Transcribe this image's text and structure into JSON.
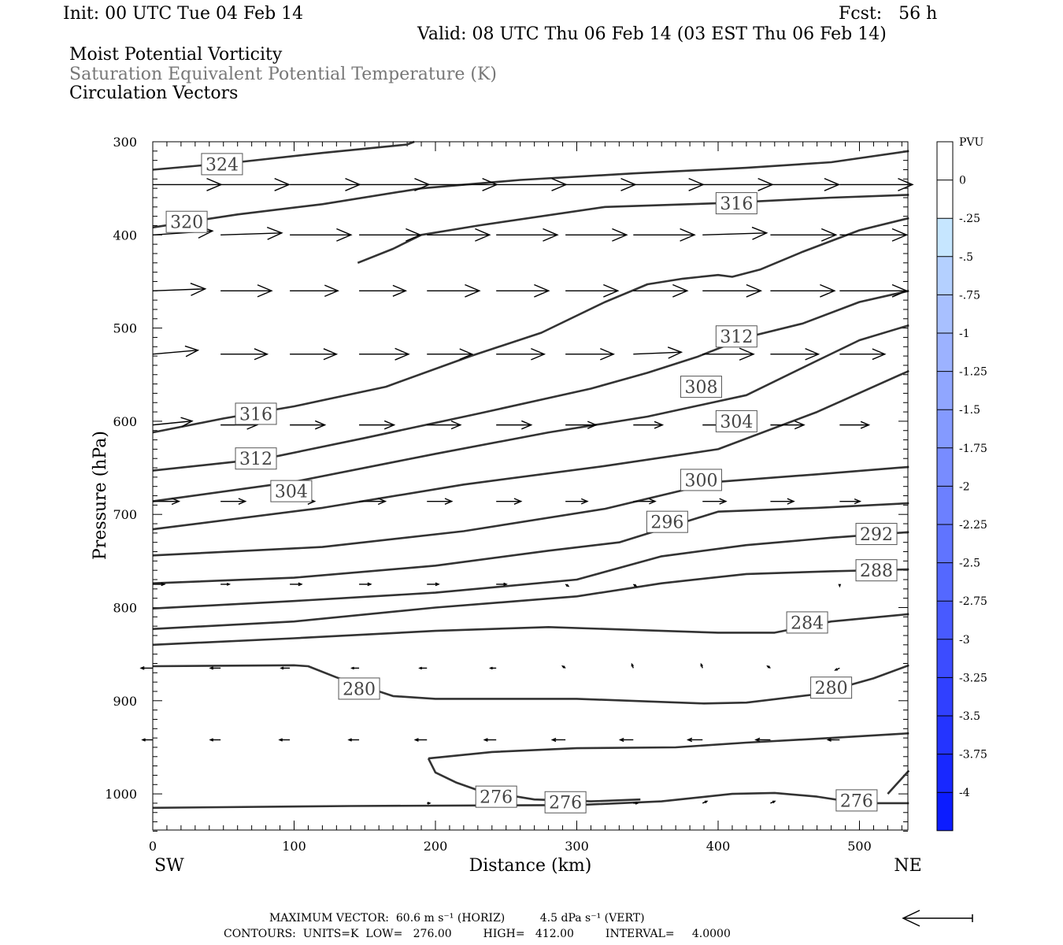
{
  "header": {
    "init": "Init: 00 UTC Tue 04 Feb 14",
    "fcst": "Fcst:   56 h",
    "valid": "Valid: 08 UTC Thu 06 Feb 14 (03 EST Thu 06 Feb 14)",
    "line1": "Moist Potential Vorticity",
    "line2": "Saturation Equivalent Potential Temperature (K)",
    "line3": "Circulation Vectors"
  },
  "footer": {
    "max_vector": "MAXIMUM VECTOR:  60.6 m s⁻¹ (HORIZ)          4.5 dPa s⁻¹ (VERT)",
    "contours": "CONTOURS:  UNITS=K  LOW=   276.00         HIGH=   412.00         INTERVAL=     4.0000"
  },
  "chart_data": {
    "type": "line",
    "xlabel": "Distance (km)",
    "ylabel": "Pressure (hPa)",
    "xlim": [
      0,
      535
    ],
    "ylim": [
      1040,
      300
    ],
    "x_ticks": [
      0,
      100,
      200,
      300,
      400,
      500
    ],
    "y_ticks": [
      300,
      400,
      500,
      600,
      700,
      800,
      900,
      1000
    ],
    "x_end_labels": {
      "left": "SW",
      "right": "NE"
    },
    "colorbar": {
      "title": "PVU",
      "levels": [
        "0",
        "-.25",
        "-.5",
        "-.75",
        "-1",
        "-1.25",
        "-1.5",
        "-1.75",
        "-2",
        "-2.25",
        "-2.5",
        "-2.75",
        "-3",
        "-3.25",
        "-3.5",
        "-3.75",
        "-4"
      ],
      "colors": [
        "#ffffff",
        "#ffffff",
        "#c6e6ff",
        "#b4d0ff",
        "#a8c0ff",
        "#9cb2ff",
        "#90a6ff",
        "#849aff",
        "#788cff",
        "#6c80ff",
        "#6074ff",
        "#5468ff",
        "#485aff",
        "#3c4cff",
        "#3040ff",
        "#2434ff",
        "#1828ff",
        "#0c1cff"
      ]
    },
    "contours": [
      {
        "value": 324,
        "points": [
          [
            0,
            330
          ],
          [
            60,
            322
          ],
          [
            120,
            312
          ],
          [
            180,
            303
          ],
          [
            185,
            300
          ]
        ]
      },
      {
        "value": 320,
        "points": [
          [
            0,
            392
          ],
          [
            60,
            378
          ],
          [
            120,
            367
          ],
          [
            190,
            350
          ],
          [
            260,
            341
          ],
          [
            340,
            334
          ],
          [
            420,
            328
          ],
          [
            480,
            322
          ],
          [
            535,
            310
          ]
        ]
      },
      {
        "value": 316,
        "points": [
          [
            0,
            612
          ],
          [
            50,
            597
          ],
          [
            100,
            584
          ],
          [
            165,
            563
          ],
          [
            225,
            530
          ],
          [
            275,
            505
          ],
          [
            320,
            472
          ],
          [
            350,
            453
          ],
          [
            375,
            447
          ],
          [
            400,
            443
          ],
          [
            410,
            445
          ],
          [
            430,
            437
          ],
          [
            460,
            418
          ],
          [
            500,
            395
          ],
          [
            535,
            382
          ]
        ]
      },
      {
        "value": 316,
        "points": [
          [
            145,
            430
          ],
          [
            170,
            415
          ],
          [
            190,
            400
          ],
          [
            230,
            390
          ],
          [
            320,
            370
          ],
          [
            400,
            366
          ],
          [
            480,
            360
          ],
          [
            535,
            357
          ]
        ]
      },
      {
        "value": 312,
        "points": [
          [
            0,
            653
          ],
          [
            80,
            640
          ],
          [
            150,
            618
          ],
          [
            230,
            592
          ],
          [
            310,
            565
          ],
          [
            350,
            548
          ],
          [
            385,
            531
          ],
          [
            420,
            510
          ],
          [
            460,
            495
          ],
          [
            500,
            472
          ],
          [
            535,
            460
          ]
        ]
      },
      {
        "value": 308,
        "points": [
          [
            0,
            686
          ],
          [
            100,
            665
          ],
          [
            200,
            635
          ],
          [
            280,
            612
          ],
          [
            350,
            595
          ],
          [
            420,
            572
          ],
          [
            470,
            535
          ],
          [
            500,
            513
          ],
          [
            535,
            497
          ]
        ]
      },
      {
        "value": 304,
        "points": [
          [
            0,
            716
          ],
          [
            120,
            693
          ],
          [
            220,
            668
          ],
          [
            320,
            648
          ],
          [
            400,
            630
          ],
          [
            470,
            590
          ],
          [
            535,
            546
          ]
        ]
      },
      {
        "value": 300,
        "points": [
          [
            0,
            744
          ],
          [
            120,
            735
          ],
          [
            220,
            718
          ],
          [
            320,
            694
          ],
          [
            400,
            665
          ],
          [
            470,
            657
          ],
          [
            535,
            649
          ]
        ]
      },
      {
        "value": 296,
        "points": [
          [
            0,
            774
          ],
          [
            100,
            768
          ],
          [
            200,
            755
          ],
          [
            280,
            739
          ],
          [
            330,
            730
          ],
          [
            400,
            697
          ],
          [
            470,
            693
          ],
          [
            535,
            688
          ]
        ]
      },
      {
        "value": 292,
        "points": [
          [
            0,
            801
          ],
          [
            100,
            793
          ],
          [
            200,
            784
          ],
          [
            300,
            770
          ],
          [
            360,
            745
          ],
          [
            420,
            733
          ],
          [
            480,
            725
          ],
          [
            535,
            719
          ]
        ]
      },
      {
        "value": 288,
        "points": [
          [
            0,
            823
          ],
          [
            100,
            815
          ],
          [
            200,
            800
          ],
          [
            300,
            788
          ],
          [
            360,
            774
          ],
          [
            420,
            764
          ],
          [
            480,
            761
          ],
          [
            535,
            759
          ]
        ]
      },
      {
        "value": 284,
        "points": [
          [
            0,
            840
          ],
          [
            100,
            833
          ],
          [
            200,
            825
          ],
          [
            280,
            821
          ],
          [
            400,
            827
          ],
          [
            440,
            827
          ],
          [
            480,
            815
          ],
          [
            535,
            807
          ]
        ]
      },
      {
        "value": 280,
        "points": [
          [
            0,
            863
          ],
          [
            100,
            862
          ],
          [
            110,
            863
          ],
          [
            130,
            875
          ],
          [
            170,
            895
          ],
          [
            200,
            898
          ],
          [
            300,
            898
          ],
          [
            390,
            903
          ],
          [
            420,
            902
          ],
          [
            470,
            893
          ],
          [
            510,
            876
          ],
          [
            535,
            862
          ]
        ]
      },
      {
        "value": 276,
        "points": [
          [
            195,
            962
          ],
          [
            200,
            977
          ],
          [
            215,
            988
          ],
          [
            230,
            996
          ],
          [
            270,
            1006
          ],
          [
            310,
            1008
          ],
          [
            345,
            1006
          ]
        ]
      },
      {
        "value": 276,
        "points": [
          [
            195,
            962
          ],
          [
            240,
            955
          ],
          [
            300,
            951
          ],
          [
            370,
            950
          ],
          [
            420,
            945
          ],
          [
            480,
            940
          ],
          [
            535,
            935
          ]
        ]
      },
      {
        "value": 276,
        "points": [
          [
            0,
            1015
          ],
          [
            140,
            1013
          ],
          [
            300,
            1012
          ],
          [
            360,
            1008
          ],
          [
            410,
            1000
          ],
          [
            440,
            999
          ],
          [
            470,
            1003
          ],
          [
            500,
            1010
          ],
          [
            535,
            1010
          ]
        ]
      },
      {
        "value": 276,
        "points": [
          [
            520,
            1000
          ],
          [
            535,
            975
          ]
        ]
      }
    ],
    "contour_labels": [
      {
        "text": "324",
        "x": 49,
        "p": 324
      },
      {
        "text": "320",
        "x": 24,
        "p": 386
      },
      {
        "text": "316",
        "x": 413,
        "p": 366
      },
      {
        "text": "312",
        "x": 413,
        "p": 509
      },
      {
        "text": "308",
        "x": 388,
        "p": 563
      },
      {
        "text": "304",
        "x": 413,
        "p": 600
      },
      {
        "text": "316",
        "x": 73,
        "p": 592
      },
      {
        "text": "312",
        "x": 73,
        "p": 640
      },
      {
        "text": "304",
        "x": 98,
        "p": 675
      },
      {
        "text": "300",
        "x": 388,
        "p": 663
      },
      {
        "text": "296",
        "x": 364,
        "p": 708
      },
      {
        "text": "292",
        "x": 512,
        "p": 721
      },
      {
        "text": "288",
        "x": 512,
        "p": 760
      },
      {
        "text": "284",
        "x": 463,
        "p": 816
      },
      {
        "text": "280",
        "x": 146,
        "p": 887
      },
      {
        "text": "280",
        "x": 480,
        "p": 886
      },
      {
        "text": "276",
        "x": 243,
        "p": 1003
      },
      {
        "text": "276",
        "x": 292,
        "p": 1009
      },
      {
        "text": "276",
        "x": 498,
        "p": 1007
      }
    ],
    "vector_rows": [
      {
        "p": 346,
        "xs": [
          0,
          48,
          97,
          146,
          194,
          243,
          292,
          340,
          389,
          437,
          486
        ],
        "u": [
          47,
          47,
          48,
          48,
          48,
          48,
          48,
          48,
          48,
          47,
          50
        ],
        "w": [
          0,
          0,
          0,
          0,
          0,
          0,
          0,
          0,
          0,
          0,
          0
        ]
      },
      {
        "p": 400,
        "xs": [
          0,
          48,
          97,
          146,
          194,
          243,
          292,
          340,
          389,
          437,
          486
        ],
        "u": [
          41,
          42,
          42,
          42,
          43,
          42,
          42,
          42,
          44,
          45,
          46
        ],
        "w": [
          2,
          1,
          0,
          0,
          0,
          0,
          0,
          0,
          1,
          0,
          0
        ]
      },
      {
        "p": 460,
        "xs": [
          0,
          48,
          97,
          146,
          194,
          243,
          292,
          340,
          389,
          437,
          486
        ],
        "u": [
          36,
          35,
          33,
          32,
          36,
          36,
          36,
          37,
          40,
          44,
          46
        ],
        "w": [
          1,
          0,
          0,
          0,
          0,
          0,
          0,
          0,
          0,
          0,
          0
        ]
      },
      {
        "p": 528,
        "xs": [
          0,
          48,
          97,
          146,
          194,
          243,
          292,
          340,
          389,
          437,
          486
        ],
        "u": [
          31,
          32,
          32,
          34,
          31,
          33,
          33,
          33,
          35,
          33,
          31
        ],
        "w": [
          2,
          0,
          0,
          0,
          0,
          0,
          0,
          1,
          0,
          0,
          0
        ]
      },
      {
        "p": 604,
        "xs": [
          0,
          48,
          97,
          146,
          194,
          243,
          292,
          340,
          389,
          437,
          486
        ],
        "u": [
          27,
          25,
          24,
          24,
          23,
          24,
          21,
          20,
          21,
          23,
          20
        ],
        "w": [
          2,
          0,
          0,
          0,
          0,
          0,
          0,
          0,
          0,
          0,
          0
        ]
      },
      {
        "p": 686,
        "xs": [
          0,
          48,
          97,
          146,
          194,
          243,
          292,
          340,
          389,
          437,
          486
        ],
        "u": [
          18,
          17,
          17,
          18,
          17,
          17,
          15,
          15,
          16,
          16,
          14
        ],
        "w": [
          0,
          0,
          0,
          0,
          0,
          0,
          0,
          0,
          0,
          0,
          0
        ]
      },
      {
        "p": 775,
        "xs": [
          0,
          48,
          97,
          146,
          194,
          243,
          292,
          340,
          389,
          437,
          486
        ],
        "u": [
          8,
          6,
          8,
          8,
          8,
          7,
          2,
          2,
          1,
          1,
          0
        ],
        "w": [
          0,
          0,
          0,
          0,
          0,
          0,
          -1,
          -1,
          0,
          0,
          -1
        ]
      },
      {
        "p": 865,
        "xs": [
          0,
          48,
          97,
          146,
          194,
          243,
          292,
          340,
          389,
          437,
          486
        ],
        "u": [
          -8,
          -7,
          -6,
          -5,
          -5,
          -4,
          -2,
          -1,
          -1,
          -2,
          -3
        ],
        "w": [
          0,
          0,
          0,
          0,
          0,
          0,
          1,
          2,
          2,
          1,
          -1
        ]
      },
      {
        "p": 942,
        "xs": [
          0,
          48,
          97,
          146,
          194,
          243,
          292,
          340,
          389,
          437,
          486
        ],
        "u": [
          -7,
          -7,
          -7,
          -7,
          -8,
          -8,
          -9,
          -9,
          -10,
          -10,
          -8
        ],
        "w": [
          0,
          0,
          0,
          0,
          0,
          0,
          0,
          0,
          0,
          0,
          0
        ]
      },
      {
        "p": 1010,
        "xs": [
          0,
          48,
          97,
          146,
          194,
          243,
          292,
          340,
          389,
          437,
          486
        ],
        "u": [
          0,
          1,
          1,
          1,
          2,
          2,
          3,
          3,
          3,
          3,
          2
        ],
        "w": [
          0,
          0,
          0,
          0,
          0,
          0,
          0,
          0,
          1,
          1,
          1
        ]
      }
    ]
  }
}
